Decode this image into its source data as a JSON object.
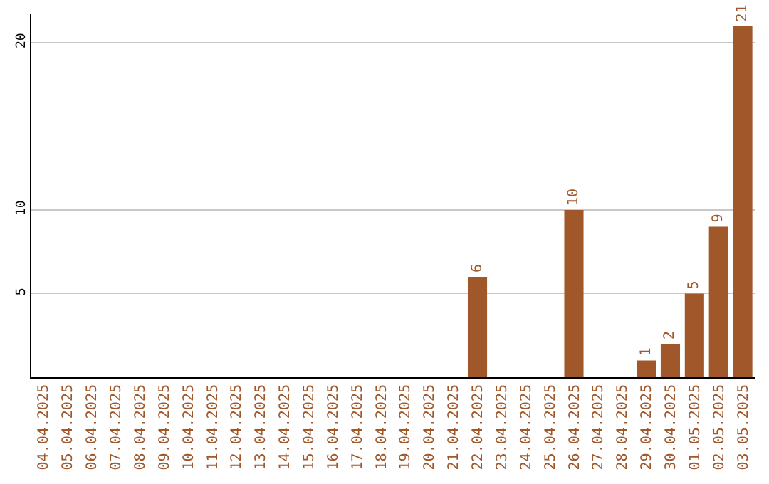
{
  "chart_data": {
    "type": "bar",
    "categories": [
      "04.04.2025",
      "05.04.2025",
      "06.04.2025",
      "07.04.2025",
      "08.04.2025",
      "09.04.2025",
      "10.04.2025",
      "11.04.2025",
      "12.04.2025",
      "13.04.2025",
      "14.04.2025",
      "15.04.2025",
      "16.04.2025",
      "17.04.2025",
      "18.04.2025",
      "19.04.2025",
      "20.04.2025",
      "21.04.2025",
      "22.04.2025",
      "23.04.2025",
      "24.04.2025",
      "25.04.2025",
      "26.04.2025",
      "27.04.2025",
      "28.04.2025",
      "29.04.2025",
      "30.04.2025",
      "01.05.2025",
      "02.05.2025",
      "03.05.2025"
    ],
    "values": [
      0,
      0,
      0,
      0,
      0,
      0,
      0,
      0,
      0,
      0,
      0,
      0,
      0,
      0,
      0,
      0,
      0,
      0,
      6,
      0,
      0,
      0,
      10,
      0,
      0,
      1,
      2,
      5,
      9,
      21
    ],
    "value_labels": [
      null,
      null,
      null,
      null,
      null,
      null,
      null,
      null,
      null,
      null,
      null,
      null,
      null,
      null,
      null,
      null,
      null,
      null,
      "6",
      null,
      null,
      null,
      "10",
      null,
      null,
      "1",
      "2",
      "5",
      "9",
      "21"
    ],
    "color": "#a0572a",
    "ylim": [
      0,
      21.7
    ],
    "yticks": [
      5,
      10,
      20
    ],
    "grid": "y"
  }
}
